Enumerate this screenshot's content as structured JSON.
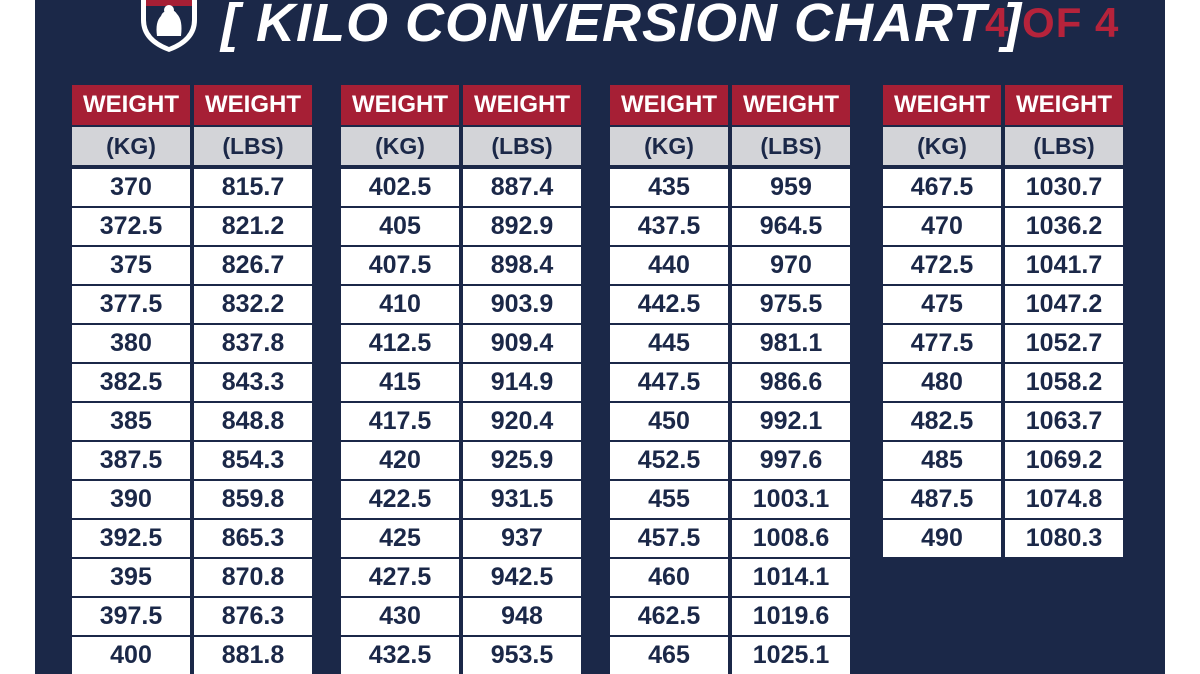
{
  "header": {
    "title": "[ KILO CONVERSION CHART ]",
    "page_indicator": "4 OF 4"
  },
  "colors": {
    "background": "#1b2848",
    "header_red": "#a61f35",
    "subheader_gray": "#d3d4d8",
    "cell_white": "#ffffff",
    "text_navy": "#1b2848"
  },
  "logo_icon": "flexed-arm-shield-icon",
  "chart_data": {
    "type": "table",
    "title": "[ KILO CONVERSION CHART ]",
    "header_row_1": [
      "WEIGHT",
      "WEIGHT"
    ],
    "header_row_2": [
      "(KG)",
      "(LBS)"
    ],
    "tables": [
      {
        "kg": [
          "370",
          "372.5",
          "375",
          "377.5",
          "380",
          "382.5",
          "385",
          "387.5",
          "390",
          "392.5",
          "395",
          "397.5",
          "400"
        ],
        "lbs": [
          "815.7",
          "821.2",
          "826.7",
          "832.2",
          "837.8",
          "843.3",
          "848.8",
          "854.3",
          "859.8",
          "865.3",
          "870.8",
          "876.3",
          "881.8"
        ]
      },
      {
        "kg": [
          "402.5",
          "405",
          "407.5",
          "410",
          "412.5",
          "415",
          "417.5",
          "420",
          "422.5",
          "425",
          "427.5",
          "430",
          "432.5"
        ],
        "lbs": [
          "887.4",
          "892.9",
          "898.4",
          "903.9",
          "909.4",
          "914.9",
          "920.4",
          "925.9",
          "931.5",
          "937",
          "942.5",
          "948",
          "953.5"
        ]
      },
      {
        "kg": [
          "435",
          "437.5",
          "440",
          "442.5",
          "445",
          "447.5",
          "450",
          "452.5",
          "455",
          "457.5",
          "460",
          "462.5",
          "465"
        ],
        "lbs": [
          "959",
          "964.5",
          "970",
          "975.5",
          "981.1",
          "986.6",
          "992.1",
          "997.6",
          "1003.1",
          "1008.6",
          "1014.1",
          "1019.6",
          "1025.1"
        ]
      },
      {
        "kg": [
          "467.5",
          "470",
          "472.5",
          "475",
          "477.5",
          "480",
          "482.5",
          "485",
          "487.5",
          "490"
        ],
        "lbs": [
          "1030.7",
          "1036.2",
          "1041.7",
          "1047.2",
          "1052.7",
          "1058.2",
          "1063.7",
          "1069.2",
          "1074.8",
          "1080.3"
        ]
      }
    ]
  }
}
